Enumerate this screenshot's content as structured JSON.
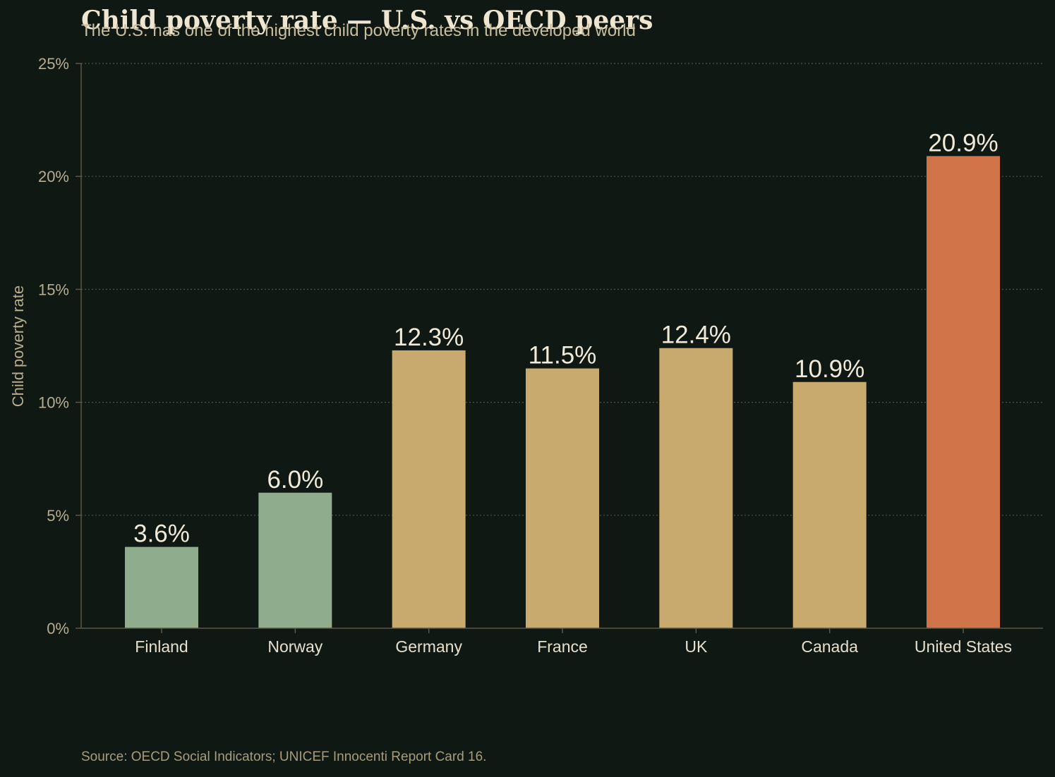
{
  "chart_data": {
    "type": "bar",
    "title": "Child poverty rate — U.S. vs OECD peers",
    "subtitle": "The U.S. has one of the highest child poverty rates in the developed world",
    "ylabel": "Child poverty rate",
    "xlabel": "",
    "source": "Source: OECD Social Indicators; UNICEF Innocenti Report Card 16.",
    "categories": [
      "Finland",
      "Norway",
      "Germany",
      "France",
      "UK",
      "Canada",
      "United States"
    ],
    "values": [
      3.6,
      6.0,
      12.3,
      11.5,
      12.4,
      10.9,
      20.9
    ],
    "value_labels": [
      "3.6%",
      "6.0%",
      "12.3%",
      "11.5%",
      "12.4%",
      "10.9%",
      "20.9%"
    ],
    "bar_colors": [
      "#8fac8c",
      "#8fac8c",
      "#c8aa6e",
      "#c8aa6e",
      "#c8aa6e",
      "#c8aa6e",
      "#d2744a"
    ],
    "ylim": [
      0,
      25
    ],
    "yticks": [
      0,
      5,
      10,
      15,
      20,
      25
    ],
    "ytick_labels": [
      "0%",
      "5%",
      "10%",
      "15%",
      "20%",
      "25%"
    ],
    "grid": true,
    "legend": "none"
  },
  "colors": {
    "background": "#0f1812",
    "axis": "#5e5646",
    "grid": "#4a5448"
  }
}
